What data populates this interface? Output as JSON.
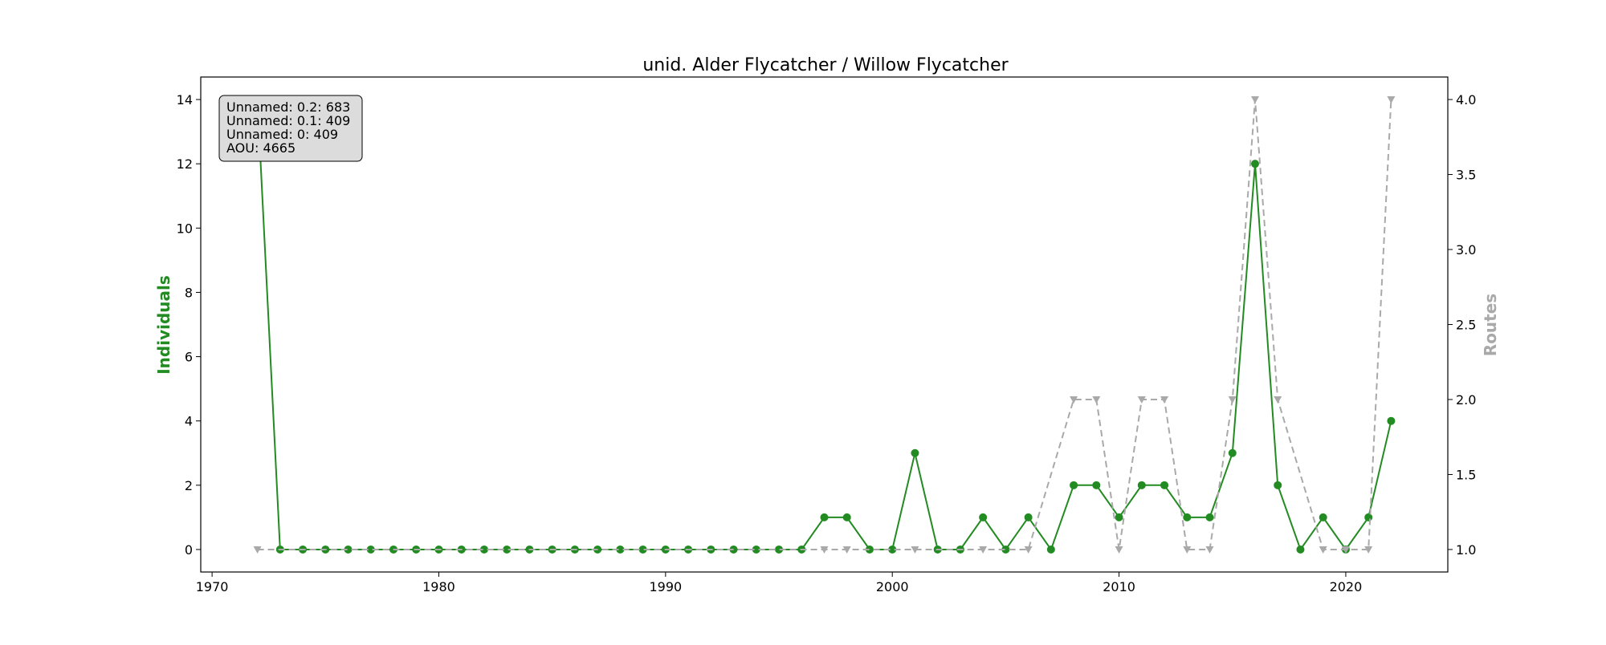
{
  "chart_data": {
    "type": "line",
    "title": "unid. Alder Flycatcher / Willow Flycatcher",
    "xlabel": "",
    "ylabel": "Individuals",
    "y2label": "Routes",
    "xlim": [
      1969.5,
      2024.5
    ],
    "ylim": [
      -0.7,
      14.7
    ],
    "y2lim": [
      0.85,
      4.15
    ],
    "xticks": [
      1970,
      1980,
      1990,
      2000,
      2010,
      2020
    ],
    "yticks": [
      0,
      2,
      4,
      6,
      8,
      10,
      12,
      14
    ],
    "y2ticks": [
      1.0,
      1.5,
      2.0,
      2.5,
      3.0,
      3.5,
      4.0
    ],
    "grid": false,
    "x": [
      1972,
      1973,
      1974,
      1975,
      1976,
      1977,
      1978,
      1979,
      1980,
      1981,
      1982,
      1983,
      1984,
      1985,
      1986,
      1987,
      1988,
      1989,
      1990,
      1991,
      1992,
      1993,
      1994,
      1995,
      1996,
      1997,
      1998,
      1999,
      2000,
      2001,
      2002,
      2003,
      2004,
      2005,
      2006,
      2007,
      2008,
      2009,
      2010,
      2011,
      2012,
      2013,
      2014,
      2015,
      2016,
      2017,
      2018,
      2019,
      2020,
      2021,
      2022
    ],
    "series": [
      {
        "axis": "left",
        "style": "solid-circle",
        "color": "#228b22",
        "values": [
          14,
          0,
          0,
          0,
          0,
          0,
          0,
          0,
          0,
          0,
          0,
          0,
          0,
          0,
          0,
          0,
          0,
          0,
          0,
          0,
          0,
          0,
          0,
          0,
          0,
          1,
          1,
          0,
          0,
          3,
          0,
          0,
          1,
          0,
          1,
          0,
          2,
          2,
          1,
          2,
          2,
          1,
          1,
          3,
          12,
          2,
          0,
          1,
          0,
          1,
          4
        ]
      },
      {
        "axis": "right",
        "style": "dashed-triangle",
        "color": "#a9a9a9",
        "x": [
          1972,
          1997,
          1998,
          2001,
          2004,
          2006,
          2008,
          2009,
          2010,
          2011,
          2012,
          2013,
          2014,
          2015,
          2016,
          2017,
          2019,
          2020,
          2021,
          2022
        ],
        "values": [
          1,
          1,
          1,
          1,
          1,
          1,
          2,
          2,
          1,
          2,
          2,
          1,
          1,
          2,
          4,
          2,
          1,
          1,
          1,
          4
        ]
      }
    ],
    "info_box": {
      "lines": [
        "Unnamed: 0.2: 683",
        "Unnamed: 0.1: 409",
        "Unnamed: 0: 409",
        "AOU: 4665"
      ]
    }
  }
}
